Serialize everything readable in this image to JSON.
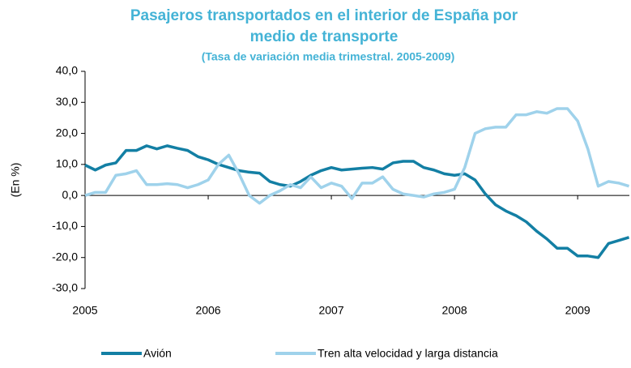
{
  "chart_data": {
    "type": "line",
    "title": [
      "Pasajeros transportados en el interior de España por",
      "medio de transporte"
    ],
    "subtitle": "(Tasa de variación media trimestral. 2005-2009)",
    "y_label": "(En %)",
    "xlim": [
      2005,
      2009.42
    ],
    "xticks": [
      2005,
      2006,
      2007,
      2008,
      2009
    ],
    "ylim": [
      -30,
      40
    ],
    "yticks": [
      {
        "value": -30,
        "label": "-30,0"
      },
      {
        "value": -20,
        "label": "-20,0"
      },
      {
        "value": -10,
        "label": "-10,0"
      },
      {
        "value": 0,
        "label": "0,0"
      },
      {
        "value": 10,
        "label": "10,0"
      },
      {
        "value": 20,
        "label": "20,0"
      },
      {
        "value": 30,
        "label": "30,0"
      },
      {
        "value": 40,
        "label": "40,0"
      }
    ],
    "x": [
      2005,
      2005.083,
      2005.167,
      2005.25,
      2005.333,
      2005.417,
      2005.5,
      2005.583,
      2005.667,
      2005.75,
      2005.833,
      2005.917,
      2006,
      2006.083,
      2006.167,
      2006.25,
      2006.333,
      2006.417,
      2006.5,
      2006.583,
      2006.667,
      2006.75,
      2006.833,
      2006.917,
      2007,
      2007.083,
      2007.167,
      2007.25,
      2007.333,
      2007.417,
      2007.5,
      2007.583,
      2007.667,
      2007.75,
      2007.833,
      2007.917,
      2008,
      2008.083,
      2008.167,
      2008.25,
      2008.333,
      2008.417,
      2008.5,
      2008.583,
      2008.667,
      2008.75,
      2008.833,
      2008.917,
      2009,
      2009.083,
      2009.167,
      2009.25,
      2009.333,
      2009.417
    ],
    "series": [
      {
        "name": "Avión",
        "color": "#137fa4",
        "values": [
          9.8,
          8.2,
          9.8,
          10.5,
          14.5,
          14.5,
          16,
          15,
          16,
          15.2,
          14.5,
          12.5,
          11.5,
          10,
          9,
          8,
          7.5,
          7.2,
          4.5,
          3.5,
          3,
          4.5,
          6.5,
          8,
          9,
          8.2,
          8.5,
          8.8,
          9,
          8.5,
          10.5,
          11,
          11,
          9,
          8.2,
          7,
          6.5,
          7,
          5,
          0.5,
          -3,
          -5,
          -6.5,
          -8.5,
          -11.5,
          -14,
          -17,
          -17,
          -19.5,
          -19.5,
          -20,
          -15.5,
          -14.5,
          -13.5
        ]
      },
      {
        "name": "Tren alta velocidad y larga distancia",
        "color": "#9fd2eb",
        "values": [
          0,
          1,
          1,
          6.5,
          7,
          8,
          3.5,
          3.5,
          3.8,
          3.5,
          2.5,
          3.5,
          5,
          10,
          13,
          7,
          0,
          -2.5,
          0,
          1.5,
          3.5,
          2.5,
          6,
          2.5,
          4,
          3,
          -1,
          4,
          4,
          6,
          2,
          0.5,
          0,
          -0.5,
          0.5,
          1,
          2,
          9,
          20,
          21.5,
          22,
          22,
          26,
          26,
          27,
          26.5,
          28,
          28,
          24,
          15,
          3,
          4.5,
          4,
          3
        ]
      }
    ]
  }
}
